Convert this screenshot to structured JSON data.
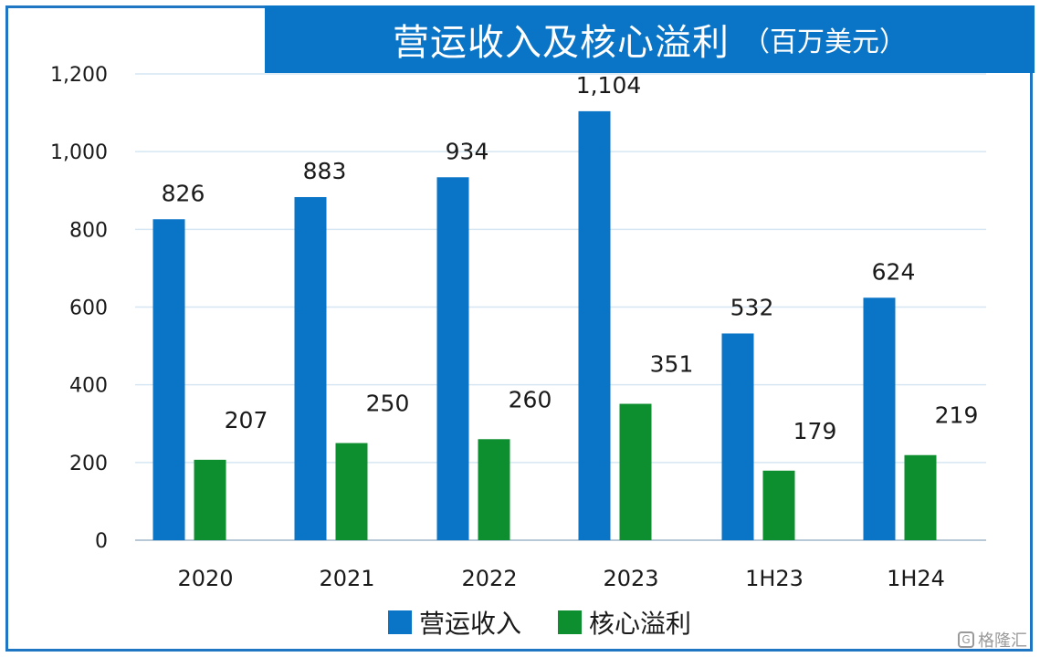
{
  "title": "营运收入及核心溢利",
  "unit": "（百万美元）",
  "colors": {
    "revenue": "#0a74c6",
    "profit": "#0e8f2f",
    "frame": "#1f77c4",
    "grid": "#d6e6f2"
  },
  "watermark": "格隆汇",
  "chart_data": {
    "type": "bar",
    "categories": [
      "2020",
      "2021",
      "2022",
      "2023",
      "1H23",
      "1H24"
    ],
    "series": [
      {
        "name": "营运收入",
        "values": [
          826,
          883,
          934,
          1104,
          532,
          624
        ]
      },
      {
        "name": "核心溢利",
        "values": [
          207,
          250,
          260,
          351,
          179,
          219
        ]
      }
    ],
    "value_labels": [
      [
        "826",
        "883",
        "934",
        "1,104",
        "532",
        "624"
      ],
      [
        "207",
        "250",
        "260",
        "351",
        "179",
        "219"
      ]
    ],
    "yticks": [
      0,
      200,
      400,
      600,
      800,
      1000,
      1200
    ],
    "ytick_labels": [
      "0",
      "200",
      "400",
      "600",
      "800",
      "1,000",
      "1,200"
    ],
    "ylim": [
      0,
      1200
    ],
    "grid": true,
    "legend": "bottom"
  }
}
